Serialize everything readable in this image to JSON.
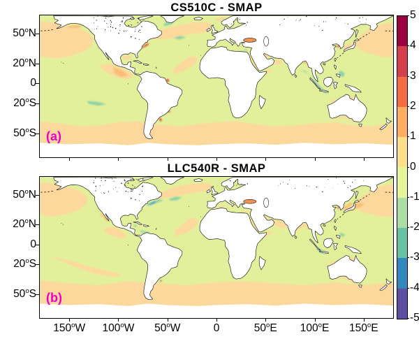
{
  "figure": {
    "panels": [
      {
        "id": "a",
        "title": "CS510C - SMAP",
        "corner_label": "(a)"
      },
      {
        "id": "b",
        "title": "LLC540R - SMAP",
        "corner_label": "(b)"
      }
    ],
    "corner_label_color": "#ee00cc",
    "y_ticks": [
      {
        "num": "50",
        "deg": "o",
        "hem": "N",
        "lat": 50
      },
      {
        "num": "20",
        "deg": "o",
        "hem": "N",
        "lat": 20
      },
      {
        "num": "0",
        "deg": "",
        "hem": "",
        "lat": 0
      },
      {
        "num": "20",
        "deg": "o",
        "hem": "S",
        "lat": -20
      },
      {
        "num": "50",
        "deg": "o",
        "hem": "S",
        "lat": -50
      }
    ],
    "x_ticks": [
      {
        "num": "150",
        "deg": "o",
        "hem": "W",
        "lon": -150
      },
      {
        "num": "100",
        "deg": "o",
        "hem": "W",
        "lon": -100
      },
      {
        "num": "50",
        "deg": "o",
        "hem": "W",
        "lon": -50
      },
      {
        "num": "0",
        "deg": "",
        "hem": "",
        "lon": 0
      },
      {
        "num": "50",
        "deg": "o",
        "hem": "E",
        "lon": 50
      },
      {
        "num": "100",
        "deg": "o",
        "hem": "E",
        "lon": 100
      },
      {
        "num": "150",
        "deg": "o",
        "hem": "E",
        "lon": 150
      }
    ],
    "colorbar": {
      "tick_labels": [
        "5",
        "4",
        "3",
        "2",
        "1",
        "0",
        "-1",
        "-2",
        "-3",
        "-4",
        "-5"
      ],
      "colors_top_to_bottom": [
        "#9e0142",
        "#d53e4f",
        "#f46d43",
        "#fdae61",
        "#fee08b",
        "#e6f598",
        "#abdda4",
        "#66c2a5",
        "#3288bd",
        "#5e4fa2"
      ]
    },
    "map_palette": {
      "ocean_base": "#e3f09b",
      "orange": "#fcd89c",
      "orange_deep": "#fbbd76",
      "teal": "#8fd1a8",
      "blue": "#4596c8",
      "red": "#da4237",
      "black_sea": "#f0924e",
      "no_data": "#ffffff",
      "land": "#ffffff",
      "coast": "#131313"
    }
  },
  "chart_data": {
    "type": "heatmap",
    "panels": [
      {
        "label": "(a)",
        "title": "CS510C - SMAP"
      },
      {
        "label": "(b)",
        "title": "LLC540R - SMAP"
      }
    ],
    "x_axis": {
      "ticks": [
        "150°W",
        "100°W",
        "50°W",
        "0",
        "50°E",
        "100°E",
        "150°E"
      ]
    },
    "y_axis": {
      "ticks": [
        "50°N",
        "20°N",
        "0",
        "20°S",
        "50°S"
      ]
    },
    "colorbar": {
      "range": [
        -5,
        5
      ],
      "tick_step": 1,
      "n_segments": 10,
      "colors_top_to_bottom": [
        "#9e0142",
        "#d53e4f",
        "#f46d43",
        "#fdae61",
        "#fee08b",
        "#e6f598",
        "#abdda4",
        "#66c2a5",
        "#3288bd",
        "#5e4fa2"
      ]
    },
    "description": "Two global equirectangular difference maps (model minus SMAP). Land is white with black coastlines. Ocean mostly -1 to 0 (pale yellow-green) with 0 to 2 (orange) bands in the Southern Ocean, North Pacific, North Atlantic and eastern tropical Pacific; teal negative patches near Bay of Bengal/Indonesia, Labrador Sea and western North Atlantic; red positive spots near Gulf Stream, Amazon and Rio de la Plata mouths, Yellow Sea, Black Sea; white (no data) poleward of about 60S."
  }
}
